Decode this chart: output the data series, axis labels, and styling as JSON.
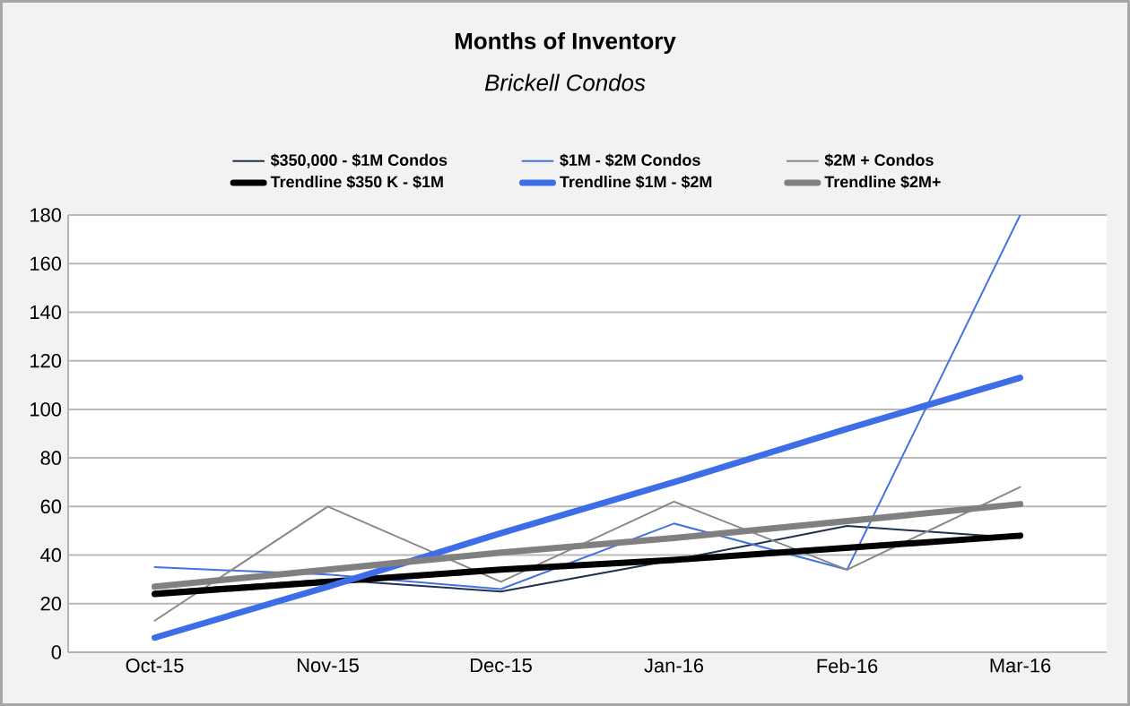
{
  "chart_data": {
    "type": "line",
    "title": "Months of Inventory",
    "subtitle": "*Brickell Condos*",
    "categories": [
      "Oct-15",
      "Nov-15",
      "Dec-15",
      "Jan-16",
      "Feb-16",
      "Mar-16"
    ],
    "series": [
      {
        "name": "$350,000 - $1M Condos",
        "color": "#1f3050",
        "values": [
          25,
          30,
          25,
          38,
          52,
          47
        ]
      },
      {
        "name": "$1M - $2M Condos",
        "color": "#4472e0",
        "values": [
          35,
          32,
          26,
          53,
          34,
          180
        ]
      },
      {
        "name": "$2M + Condos",
        "color": "#888888",
        "values": [
          13,
          60,
          29,
          62,
          34,
          68
        ]
      },
      {
        "name": "Trendline $350 K - $1M",
        "color": "#000000",
        "values": [
          24,
          29,
          34,
          38,
          43,
          48
        ]
      },
      {
        "name": "Trendline $1M - $2M",
        "color": "#3d6ee8",
        "values": [
          6,
          27,
          49,
          70,
          92,
          113
        ]
      },
      {
        "name": "Trendline $2M+",
        "color": "#808080",
        "values": [
          27,
          34,
          41,
          47,
          54,
          61
        ]
      }
    ],
    "ylim": [
      0,
      180
    ],
    "yticks": [
      0,
      20,
      40,
      60,
      80,
      100,
      120,
      140,
      160,
      180
    ],
    "grid": "y",
    "legend": "top"
  }
}
